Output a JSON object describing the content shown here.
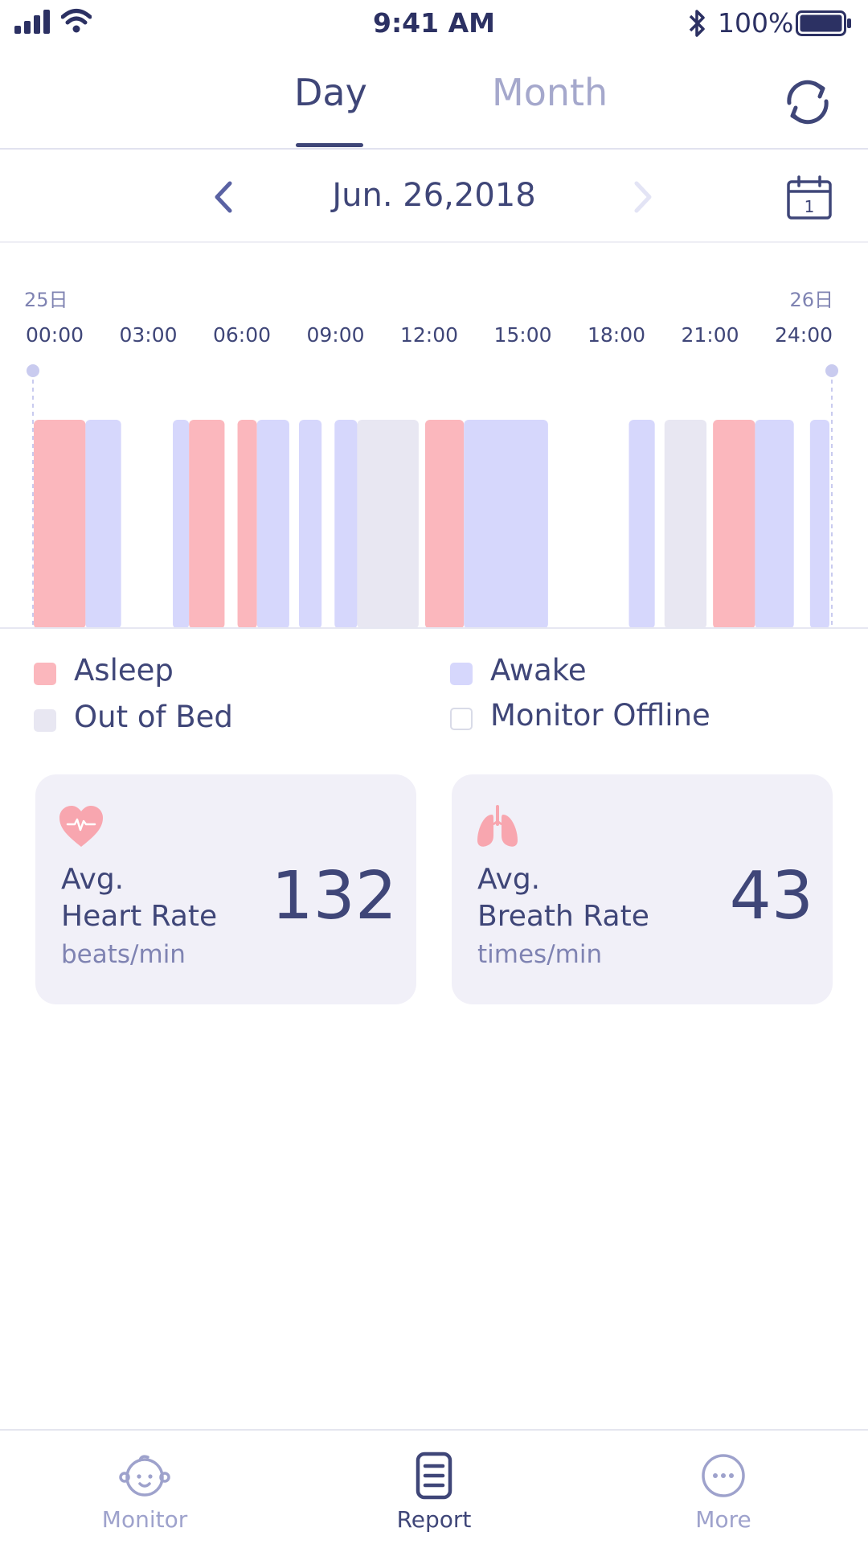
{
  "status_bar": {
    "time": "9:41 AM",
    "battery": "100%"
  },
  "tabs": [
    {
      "label": "Day",
      "active": true
    },
    {
      "label": "Month",
      "active": false
    }
  ],
  "date_nav": {
    "date": "Jun. 26,2018"
  },
  "calendar_day": "1",
  "colors": {
    "asleep": "#fbb7bd",
    "awake": "#d6d7fc",
    "out_of_bed": "#e8e7f2",
    "offline": "#ffffff",
    "accent": "#3f4678",
    "muted": "#a5a8cc"
  },
  "chart_data": {
    "type": "timeline",
    "start_day_label": "25日",
    "end_day_label": "26日",
    "x_ticks": [
      "00:00",
      "03:00",
      "06:00",
      "09:00",
      "12:00",
      "15:00",
      "18:00",
      "21:00",
      "24:00"
    ],
    "segments": [
      {
        "state": "asleep",
        "start": 0.0,
        "end": 1.6
      },
      {
        "state": "awake",
        "start": 1.6,
        "end": 2.7
      },
      {
        "state": "awake",
        "start": 4.3,
        "end": 4.8
      },
      {
        "state": "asleep",
        "start": 4.8,
        "end": 5.9
      },
      {
        "state": "asleep",
        "start": 6.3,
        "end": 6.9
      },
      {
        "state": "awake",
        "start": 6.9,
        "end": 7.9
      },
      {
        "state": "awake",
        "start": 8.2,
        "end": 8.9
      },
      {
        "state": "awake",
        "start": 9.3,
        "end": 10.0
      },
      {
        "state": "out_of_bed",
        "start": 10.0,
        "end": 11.9
      },
      {
        "state": "asleep",
        "start": 12.1,
        "end": 13.3
      },
      {
        "state": "awake",
        "start": 13.3,
        "end": 15.9
      },
      {
        "state": "awake",
        "start": 18.4,
        "end": 19.2
      },
      {
        "state": "out_of_bed",
        "start": 19.5,
        "end": 20.8
      },
      {
        "state": "asleep",
        "start": 21.0,
        "end": 22.3
      },
      {
        "state": "awake",
        "start": 22.3,
        "end": 23.5
      },
      {
        "state": "awake",
        "start": 24.0,
        "end": 24.6
      }
    ],
    "x_range": [
      0,
      24
    ]
  },
  "legend": [
    {
      "key": "asleep",
      "label": "Asleep"
    },
    {
      "key": "awake",
      "label": "Awake"
    },
    {
      "key": "out_of_bed",
      "label": "Out of Bed"
    },
    {
      "key": "offline",
      "label": "Monitor Offline"
    }
  ],
  "stats": {
    "heart": {
      "title_line1": "Avg.",
      "title_line2": "Heart Rate",
      "unit": "beats/min",
      "value": "132",
      "icon": "heart-icon"
    },
    "breath": {
      "title_line1": "Avg.",
      "title_line2": "Breath Rate",
      "unit": "times/min",
      "value": "43",
      "icon": "lungs-icon"
    }
  },
  "bottom_nav": [
    {
      "label": "Monitor",
      "icon": "baby-face-icon",
      "active": false
    },
    {
      "label": "Report",
      "icon": "report-icon",
      "active": true
    },
    {
      "label": "More",
      "icon": "more-icon",
      "active": false
    }
  ]
}
